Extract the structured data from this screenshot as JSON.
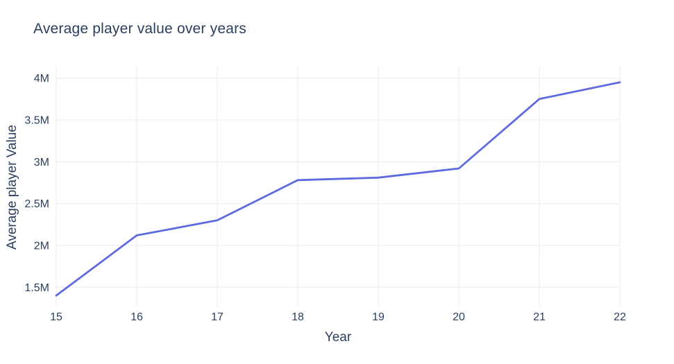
{
  "title": "Average player value over years",
  "colors": {
    "background": "#ffffff",
    "text": "#2a3f5f",
    "line": "#5e6ae0",
    "grid": "#edf0f2"
  },
  "chart_data": {
    "type": "line",
    "title": "Average player value over years",
    "xlabel": "Year",
    "ylabel": "Average player Value",
    "x": [
      15,
      16,
      17,
      18,
      19,
      20,
      21,
      22
    ],
    "y_millions": [
      1.4,
      2.12,
      2.3,
      2.78,
      2.81,
      2.92,
      3.75,
      3.95
    ],
    "x_tick_labels": [
      "15",
      "16",
      "17",
      "18",
      "19",
      "20",
      "21",
      "22"
    ],
    "y_tick_values_millions": [
      1.5,
      2.0,
      2.5,
      3.0,
      3.5,
      4.0
    ],
    "y_tick_labels": [
      "1.5M",
      "2M",
      "2.5M",
      "3M",
      "3.5M",
      "4M"
    ],
    "xlim": [
      15,
      22
    ],
    "ylim_millions": [
      1.27,
      4.13
    ],
    "grid": true,
    "legend": false
  }
}
